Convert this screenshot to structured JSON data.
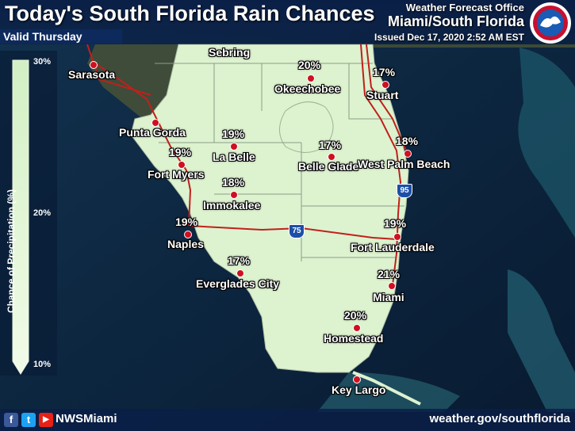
{
  "header": {
    "title": "Today's South Florida Rain Chances",
    "valid": "Valid Thursday",
    "office_line1": "Weather Forecast Office",
    "office_line2": "Miami/South Florida",
    "issued": "Issued Dec 17, 2020 2:52 AM EST",
    "logo_icon": "noaa-nws-logo-icon"
  },
  "legend": {
    "label": "Chance of Precipitation (%)",
    "ticks": [
      "30%",
      "20%",
      "10%"
    ],
    "color_low": "#f2fbe8",
    "color_high": "#d2f0c4"
  },
  "cities": [
    {
      "name": "Sarasota",
      "pct": ""
    },
    {
      "name": "Sebring",
      "pct": ""
    },
    {
      "name": "Okeechobee",
      "pct": "20%"
    },
    {
      "name": "Stuart",
      "pct": "17%"
    },
    {
      "name": "Punta Gorda",
      "pct": ""
    },
    {
      "name": "La Belle",
      "pct": "19%"
    },
    {
      "name": "Fort Myers",
      "pct": "19%"
    },
    {
      "name": "Belle Glade",
      "pct": "17%"
    },
    {
      "name": "West Palm Beach",
      "pct": "18%"
    },
    {
      "name": "Immokalee",
      "pct": "18%"
    },
    {
      "name": "Naples",
      "pct": "19%"
    },
    {
      "name": "Fort Lauderdale",
      "pct": "19%"
    },
    {
      "name": "Everglades City",
      "pct": "17%"
    },
    {
      "name": "Miami",
      "pct": "21%"
    },
    {
      "name": "Homestead",
      "pct": "20%"
    },
    {
      "name": "Key Largo",
      "pct": ""
    }
  ],
  "highways": {
    "i95": "95",
    "i75": "75"
  },
  "footer": {
    "facebook": "f",
    "twitter": "t",
    "youtube": "▶",
    "handle": "NWSMiami",
    "website": "weather.gov/southflorida"
  },
  "colors": {
    "land": "#ddf2cf",
    "water": "#0b2540",
    "roads": "#c0201c",
    "dot": "#d01020"
  }
}
